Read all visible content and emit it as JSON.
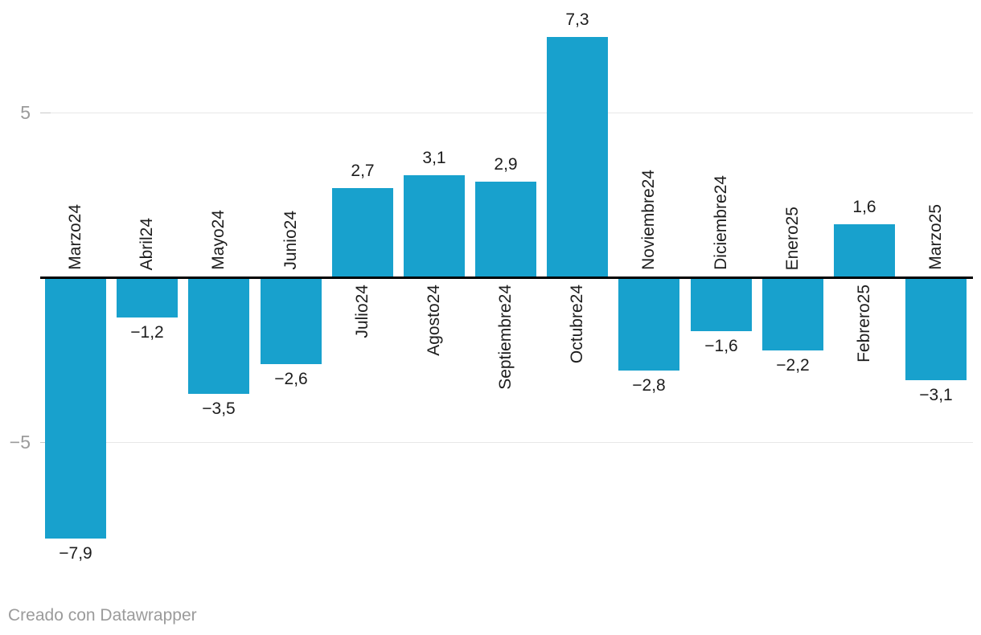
{
  "chart_data": {
    "type": "bar",
    "categories": [
      "Marzo24",
      "Abril24",
      "Mayo24",
      "Junio24",
      "Julio24",
      "Agosto24",
      "Septiembre24",
      "Octubre24",
      "Noviembre24",
      "Diciembre24",
      "Enero25",
      "Febrero25",
      "Marzo25"
    ],
    "values": [
      -7.9,
      -1.2,
      -3.5,
      -2.6,
      2.7,
      3.1,
      2.9,
      7.3,
      -2.8,
      -1.6,
      -2.2,
      1.6,
      -3.1
    ],
    "value_labels": [
      "−7,9",
      "−1,2",
      "−3,5",
      "−2,6",
      "2,7",
      "3,1",
      "2,9",
      "7,3",
      "−2,8",
      "−1,6",
      "−2,2",
      "1,6",
      "−3,1"
    ],
    "title": "",
    "xlabel": "",
    "ylabel": "",
    "ylim": [
      -9.5,
      8.4
    ],
    "yticks": [
      {
        "value": 5,
        "label": "5"
      },
      {
        "value": -5,
        "label": "−5"
      }
    ],
    "baseline_value": 0,
    "grid": true,
    "legend": "none"
  },
  "colors": {
    "bar": "#18a1cd",
    "baseline": "#000000",
    "gridline": "#e8e8e8",
    "tick_accent": "#c9c9c9",
    "tick_label": "#9b9b9b",
    "value_label": "#1d1d1d",
    "category_label": "#1d1d1d",
    "credit": "#9b9b9b",
    "background": "#ffffff"
  },
  "footer": {
    "credit": "Creado con Datawrapper"
  }
}
